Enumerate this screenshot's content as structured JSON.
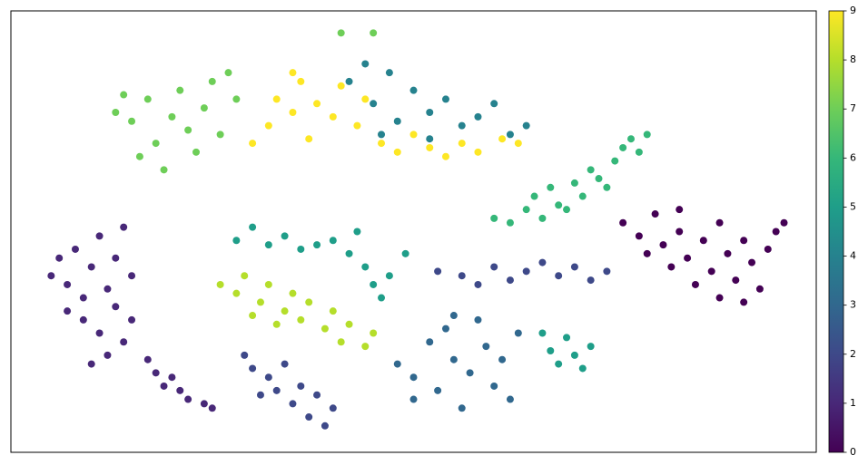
{
  "chart_data": {
    "type": "scatter",
    "colormap": "viridis",
    "xlim": [
      0,
      100
    ],
    "ylim": [
      0,
      100
    ],
    "clim": [
      0,
      9
    ],
    "cticks": [
      0,
      1,
      2,
      3,
      4,
      5,
      6,
      7,
      8,
      9
    ],
    "series": [
      {
        "c": 0,
        "x": [
          76,
          78,
          80,
          81,
          83,
          84,
          86,
          87,
          88,
          89,
          90,
          91,
          92,
          93,
          94,
          95,
          85,
          82,
          79,
          88,
          91,
          83,
          96
        ],
        "y": [
          52,
          49,
          54,
          47,
          50,
          44,
          48,
          41,
          52,
          45,
          39,
          48,
          43,
          37,
          46,
          50,
          38,
          42,
          45,
          35,
          34,
          55,
          52
        ]
      },
      {
        "c": 1,
        "x": [
          5,
          6,
          7,
          8,
          9,
          10,
          11,
          12,
          13,
          14,
          9,
          11,
          13,
          15,
          7,
          12,
          14,
          15,
          10,
          17,
          18,
          19,
          21,
          22,
          24,
          25,
          20
        ],
        "y": [
          40,
          44,
          38,
          46,
          35,
          42,
          49,
          37,
          44,
          51,
          30,
          27,
          33,
          40,
          32,
          22,
          25,
          30,
          20,
          21,
          18,
          15,
          14,
          12,
          11,
          10,
          17
        ]
      },
      {
        "c": 2,
        "x": [
          29,
          30,
          32,
          33,
          34,
          35,
          36,
          37,
          38,
          39,
          40,
          31,
          53,
          56,
          58,
          60,
          62,
          64,
          66,
          68,
          70,
          72,
          74
        ],
        "y": [
          22,
          19,
          17,
          14,
          20,
          11,
          15,
          8,
          13,
          6,
          10,
          13,
          41,
          40,
          38,
          42,
          39,
          41,
          43,
          40,
          42,
          39,
          41
        ]
      },
      {
        "c": 3,
        "x": [
          48,
          50,
          52,
          53,
          54,
          55,
          56,
          57,
          58,
          59,
          60,
          61,
          62,
          63,
          50,
          55
        ],
        "y": [
          20,
          17,
          25,
          14,
          28,
          21,
          10,
          18,
          30,
          24,
          15,
          21,
          12,
          27,
          12,
          31
        ]
      },
      {
        "c": 4,
        "x": [
          42,
          44,
          45,
          47,
          48,
          50,
          52,
          54,
          56,
          58,
          60,
          62,
          64,
          46,
          52
        ],
        "y": [
          84,
          88,
          79,
          86,
          75,
          82,
          77,
          80,
          74,
          76,
          79,
          72,
          74,
          72,
          71
        ]
      },
      {
        "c": 5,
        "x": [
          28,
          30,
          32,
          34,
          36,
          38,
          40,
          42,
          44,
          45,
          46,
          47,
          49,
          43,
          66,
          67,
          68,
          69,
          70,
          72,
          71
        ],
        "y": [
          48,
          51,
          47,
          49,
          46,
          47,
          48,
          45,
          42,
          38,
          35,
          40,
          45,
          50,
          27,
          23,
          20,
          26,
          22,
          24,
          19
        ]
      },
      {
        "c": 6,
        "x": [
          60,
          62,
          64,
          65,
          66,
          67,
          68,
          70,
          71,
          72,
          73,
          75,
          76,
          77,
          78,
          79,
          74,
          69
        ],
        "y": [
          53,
          52,
          55,
          58,
          53,
          60,
          56,
          61,
          58,
          64,
          62,
          66,
          69,
          71,
          68,
          72,
          60,
          55
        ]
      },
      {
        "c": 7,
        "x": [
          13,
          14,
          15,
          17,
          18,
          20,
          21,
          22,
          23,
          24,
          25,
          26,
          27,
          28,
          16,
          19,
          41,
          45
        ],
        "y": [
          77,
          81,
          75,
          80,
          70,
          76,
          82,
          73,
          68,
          78,
          84,
          72,
          86,
          80,
          67,
          64,
          95,
          95
        ]
      },
      {
        "c": 8,
        "x": [
          26,
          28,
          29,
          31,
          32,
          34,
          35,
          36,
          37,
          39,
          40,
          41,
          42,
          44,
          45,
          30,
          33
        ],
        "y": [
          38,
          36,
          40,
          34,
          38,
          32,
          36,
          30,
          34,
          28,
          32,
          25,
          29,
          24,
          27,
          31,
          29
        ]
      },
      {
        "c": 9,
        "x": [
          30,
          32,
          33,
          35,
          36,
          37,
          38,
          40,
          41,
          43,
          44,
          46,
          48,
          50,
          52,
          54,
          56,
          58,
          61,
          63,
          35
        ],
        "y": [
          70,
          74,
          80,
          77,
          84,
          71,
          79,
          76,
          83,
          74,
          80,
          70,
          68,
          72,
          69,
          67,
          70,
          68,
          71,
          70,
          86
        ]
      }
    ]
  }
}
